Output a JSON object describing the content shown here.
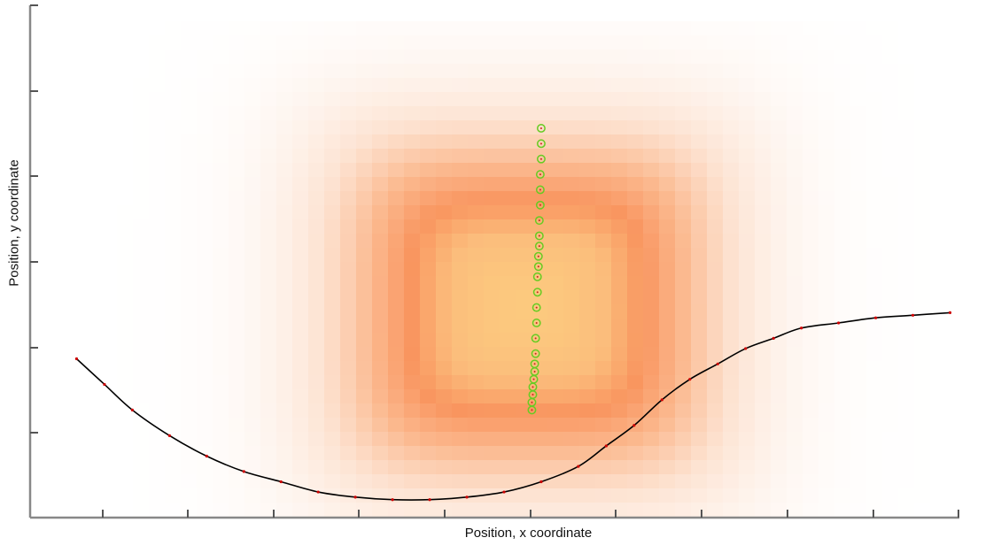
{
  "chart_data": {
    "type": "scatter",
    "title": "",
    "xlabel": "Position, x coordinate",
    "ylabel": "Position, y coordinate",
    "xlim": [
      0,
      1
    ],
    "ylim": [
      0,
      1
    ],
    "tick_labels_shown": false,
    "grid": false,
    "heatmap": {
      "description_free": true,
      "colormap": [
        "#ffffff",
        "#fde3d2",
        "#fbb98f",
        "#f9955f",
        "#fbbd7c",
        "#fcc97e"
      ],
      "peak_x": 0.535,
      "peak_y": 0.41,
      "spread_x": 0.2,
      "spread_y": 0.33
    },
    "series": [
      {
        "name": "trajectory",
        "style": "black line with red dots",
        "color": "#000000",
        "marker_color": "#cc0000",
        "x": [
          0.05,
          0.08,
          0.11,
          0.15,
          0.19,
          0.23,
          0.27,
          0.31,
          0.35,
          0.39,
          0.43,
          0.47,
          0.51,
          0.55,
          0.59,
          0.62,
          0.65,
          0.68,
          0.71,
          0.74,
          0.77,
          0.8,
          0.83,
          0.87,
          0.91,
          0.95,
          0.99
        ],
        "y": [
          0.31,
          0.26,
          0.21,
          0.16,
          0.12,
          0.09,
          0.07,
          0.05,
          0.04,
          0.035,
          0.035,
          0.04,
          0.05,
          0.07,
          0.1,
          0.14,
          0.18,
          0.23,
          0.27,
          0.3,
          0.33,
          0.35,
          0.37,
          0.38,
          0.39,
          0.395,
          0.4
        ]
      },
      {
        "name": "green trail",
        "style": "green open circles",
        "color": "#66cc22",
        "x": [
          0.54,
          0.54,
          0.541,
          0.541,
          0.542,
          0.543,
          0.543,
          0.544,
          0.544,
          0.545,
          0.545,
          0.546,
          0.546,
          0.547,
          0.547,
          0.548,
          0.548,
          0.548,
          0.549,
          0.549,
          0.549,
          0.55,
          0.55,
          0.55
        ],
        "y": [
          0.21,
          0.225,
          0.24,
          0.255,
          0.27,
          0.285,
          0.3,
          0.32,
          0.35,
          0.38,
          0.41,
          0.44,
          0.47,
          0.49,
          0.51,
          0.53,
          0.55,
          0.58,
          0.61,
          0.64,
          0.67,
          0.7,
          0.73,
          0.76
        ]
      }
    ]
  }
}
